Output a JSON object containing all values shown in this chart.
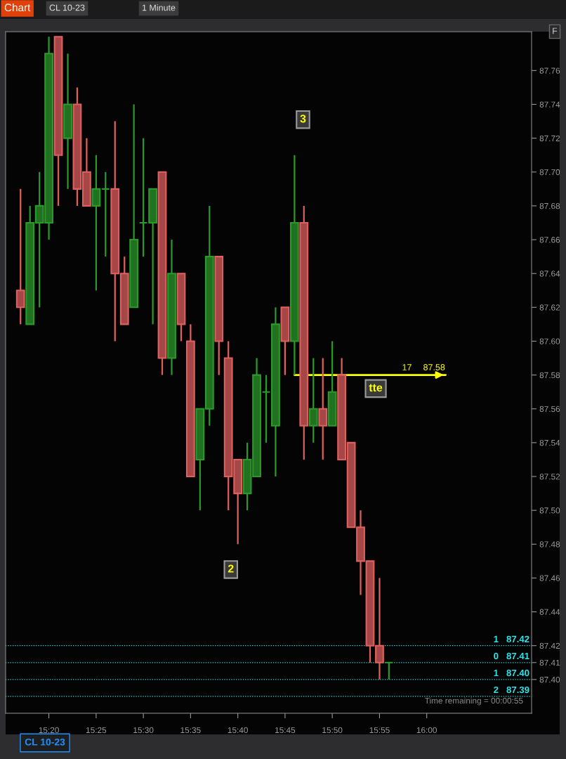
{
  "chart_data": {
    "type": "candlestick",
    "title": "CL 10-23",
    "subtitle": "1 Minute",
    "x": [
      15.2833,
      15.3,
      15.3167,
      15.3333,
      15.35,
      15.3667,
      15.3833,
      15.4,
      15.4167,
      15.4333,
      15.45,
      15.4667,
      15.4833,
      15.5,
      15.5167,
      15.5333,
      15.55,
      15.5667,
      15.5833,
      15.6,
      15.6167,
      15.6333,
      15.65,
      15.6667,
      15.6833,
      15.7,
      15.7167,
      15.7333,
      15.75,
      15.7667,
      15.7833,
      15.8,
      15.8167,
      15.8333,
      15.85,
      15.8667,
      15.8833,
      15.9,
      15.9167,
      15.9333
    ],
    "ohlc": [
      [
        87.63,
        87.69,
        87.61,
        87.62
      ],
      [
        87.61,
        87.68,
        87.61,
        87.67
      ],
      [
        87.67,
        87.7,
        87.62,
        87.68
      ],
      [
        87.67,
        87.78,
        87.66,
        87.77
      ],
      [
        87.78,
        87.78,
        87.68,
        87.71
      ],
      [
        87.72,
        87.77,
        87.69,
        87.74
      ],
      [
        87.74,
        87.75,
        87.68,
        87.69
      ],
      [
        87.7,
        87.72,
        87.68,
        87.68
      ],
      [
        87.68,
        87.71,
        87.63,
        87.69
      ],
      [
        87.69,
        87.7,
        87.65,
        87.69
      ],
      [
        87.69,
        87.73,
        87.6,
        87.64
      ],
      [
        87.64,
        87.65,
        87.61,
        87.61
      ],
      [
        87.62,
        87.74,
        87.62,
        87.66
      ],
      [
        87.67,
        87.72,
        87.65,
        87.67
      ],
      [
        87.67,
        87.69,
        87.61,
        87.69
      ],
      [
        87.7,
        87.7,
        87.58,
        87.59
      ],
      [
        87.59,
        87.66,
        87.58,
        87.64
      ],
      [
        87.64,
        87.64,
        87.6,
        87.61
      ],
      [
        87.6,
        87.61,
        87.52,
        87.52
      ],
      [
        87.53,
        87.56,
        87.5,
        87.56
      ],
      [
        87.56,
        87.68,
        87.55,
        87.65
      ],
      [
        87.65,
        87.65,
        87.58,
        87.6
      ],
      [
        87.59,
        87.6,
        87.5,
        87.52
      ],
      [
        87.53,
        87.53,
        87.48,
        87.51
      ],
      [
        87.51,
        87.54,
        87.5,
        87.53
      ],
      [
        87.52,
        87.59,
        87.52,
        87.58
      ],
      [
        87.57,
        87.58,
        87.54,
        87.57
      ],
      [
        87.55,
        87.62,
        87.52,
        87.61
      ],
      [
        87.62,
        87.62,
        87.58,
        87.6
      ],
      [
        87.6,
        87.71,
        87.58,
        87.67
      ],
      [
        87.67,
        87.68,
        87.53,
        87.55
      ],
      [
        87.55,
        87.59,
        87.54,
        87.56
      ],
      [
        87.56,
        87.59,
        87.53,
        87.55
      ],
      [
        87.55,
        87.6,
        87.55,
        87.57
      ],
      [
        87.58,
        87.59,
        87.53,
        87.53
      ],
      [
        87.54,
        87.54,
        87.49,
        87.49
      ],
      [
        87.49,
        87.5,
        87.45,
        87.47
      ],
      [
        87.47,
        87.47,
        87.41,
        87.42
      ],
      [
        87.42,
        87.46,
        87.4,
        87.41
      ],
      [
        87.41,
        87.41,
        87.4,
        87.41
      ]
    ],
    "colors": [
      "#e06060",
      "#2b9a2b",
      "#2b9a2b",
      "#2b9a2b",
      "#e06060",
      "#2b9a2b",
      "#e06060",
      "#e06060",
      "#2b9a2b",
      "#2b9a2b",
      "#e06060",
      "#e06060",
      "#2b9a2b",
      "#2b9a2b",
      "#2b9a2b",
      "#e06060",
      "#2b9a2b",
      "#e06060",
      "#e06060",
      "#2b9a2b",
      "#2b9a2b",
      "#e06060",
      "#e06060",
      "#e06060",
      "#2b9a2b",
      "#2b9a2b",
      "#2b9a2b",
      "#2b9a2b",
      "#e06060",
      "#2b9a2b",
      "#e06060",
      "#2b9a2b",
      "#e06060",
      "#2b9a2b",
      "#e06060",
      "#e06060",
      "#e06060",
      "#e06060",
      "#e06060",
      "#2b9a2b"
    ],
    "series": [
      {
        "type": "line",
        "x": [
          15.7667,
          16.0333
        ],
        "values": [
          87.58,
          87.58
        ],
        "color": "#ffff00"
      }
    ],
    "ref_lines": [
      {
        "axis": "y",
        "value": 87.42,
        "label": "1   87.42",
        "color": "#33e0e8",
        "line_style": "dotted"
      },
      {
        "axis": "y",
        "value": 87.41,
        "label": "0   87.41",
        "color": "#33e0e8",
        "line_style": "dotted"
      },
      {
        "axis": "y",
        "value": 87.4,
        "label": "1   87.40",
        "color": "#33e0e8",
        "line_style": "dotted"
      },
      {
        "axis": "y",
        "value": 87.39,
        "label": "2   87.39",
        "color": "#33e0e8",
        "line_style": "dotted"
      }
    ],
    "annotations": [
      "Chart",
      "F",
      "Time remaining = 00:00:55",
      "CL 10-23",
      {
        "text": "17",
        "x": 15.965,
        "y": 87.58
      },
      {
        "text": "87.58",
        "x": 16.013,
        "y": 87.58
      },
      {
        "text": "3",
        "x": 15.7817,
        "y": 87.731
      },
      {
        "text": "2",
        "x": 15.6544,
        "y": 87.465
      },
      {
        "text": "tte",
        "x": 15.91,
        "y": 87.572
      }
    ],
    "xlim": [
      15.257,
      16.185
    ],
    "ylim": [
      87.38,
      87.783
    ],
    "xticks": [
      {
        "value": 15.3333,
        "label": "15:20"
      },
      {
        "value": 15.4167,
        "label": "15:25"
      },
      {
        "value": 15.5,
        "label": "15:30"
      },
      {
        "value": 15.5833,
        "label": "15:35"
      },
      {
        "value": 15.6667,
        "label": "15:40"
      },
      {
        "value": 15.75,
        "label": "15:45"
      },
      {
        "value": 15.8333,
        "label": "15:50"
      },
      {
        "value": 15.9167,
        "label": "15:55"
      },
      {
        "value": 16.0,
        "label": "16:00"
      }
    ],
    "yticks": [
      {
        "value": 87.4,
        "label": "87.40"
      },
      {
        "value": 87.41,
        "label": "87.41"
      },
      {
        "value": 87.42,
        "label": "87.42"
      },
      {
        "value": 87.44,
        "label": "87.44"
      },
      {
        "value": 87.46,
        "label": "87.46"
      },
      {
        "value": 87.48,
        "label": "87.48"
      },
      {
        "value": 87.5,
        "label": "87.50"
      },
      {
        "value": 87.52,
        "label": "87.52"
      },
      {
        "value": 87.54,
        "label": "87.54"
      },
      {
        "value": 87.56,
        "label": "87.56"
      },
      {
        "value": 87.58,
        "label": "87.58"
      },
      {
        "value": 87.6,
        "label": "87.60"
      },
      {
        "value": 87.62,
        "label": "87.62"
      },
      {
        "value": 87.64,
        "label": "87.64"
      },
      {
        "value": 87.66,
        "label": "87.66"
      },
      {
        "value": 87.68,
        "label": "87.68"
      },
      {
        "value": 87.7,
        "label": "87.70"
      },
      {
        "value": 87.72,
        "label": "87.72"
      },
      {
        "value": 87.74,
        "label": "87.74"
      },
      {
        "value": 87.76,
        "label": "87.76"
      }
    ],
    "grid": false,
    "legend": false
  }
}
